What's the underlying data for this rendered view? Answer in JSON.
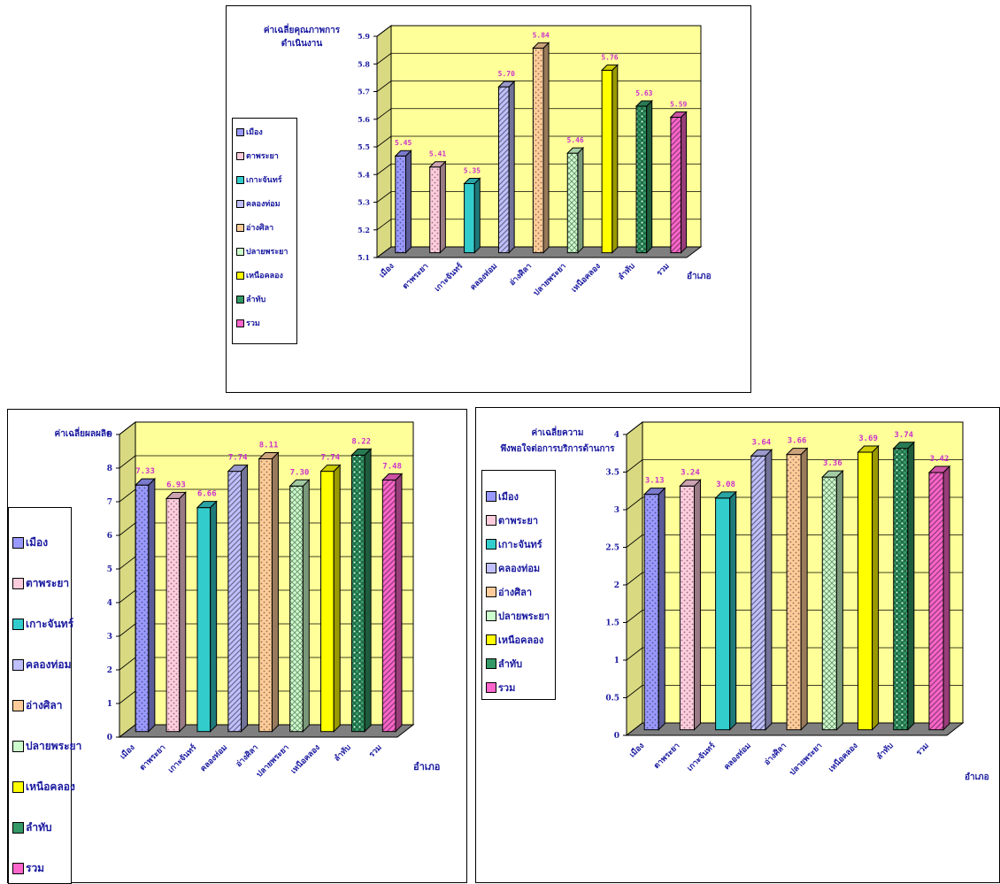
{
  "chart_data": [
    {
      "type": "bar",
      "ytitle_lines": [
        "ค่าเฉลี่ยคุณภาพการ",
        "ดำเนินงาน"
      ],
      "xlabel": "อำเภอ",
      "categories": [
        "เมือง",
        "ตาพระยา",
        "เกาะจันทร์",
        "คลองท่อม",
        "อ่างศิลา",
        "ปลายพระยา",
        "เหนือคลอง",
        "ลำทับ",
        "รวม"
      ],
      "values": [
        5.45,
        5.41,
        5.35,
        5.7,
        5.84,
        5.46,
        5.76,
        5.63,
        5.59
      ],
      "value_labels": [
        "5.45",
        "5.41",
        "5.35",
        "5.70",
        "5.84",
        "5.46",
        "5.76",
        "5.63",
        "5.59"
      ],
      "ylim": [
        5.1,
        5.9
      ],
      "yticks": [
        "5.1",
        "5.2",
        "5.3",
        "5.4",
        "5.5",
        "5.6",
        "5.7",
        "5.8",
        "5.9"
      ],
      "grid": true,
      "legend_position": "left",
      "legend": [
        "เมือง",
        "ตาพระยา",
        "เกาะจันทร์",
        "คลองท่อม",
        "อ่างศิลา",
        "ปลายพระยา",
        "เหนือคลอง",
        "ลำทับ",
        "รวม"
      ]
    },
    {
      "type": "bar",
      "ytitle_lines": [
        "ค่าเฉลี่ยผลผลิต"
      ],
      "xlabel": "อำเภอ",
      "categories": [
        "เมือง",
        "ตาพระยา",
        "เกาะจันทร์",
        "คลองท่อม",
        "อ่างศิลา",
        "ปลายพระยา",
        "เหนือคลอง",
        "ลำทับ",
        "รวม"
      ],
      "values": [
        7.33,
        6.93,
        6.66,
        7.74,
        8.11,
        7.3,
        7.74,
        8.22,
        7.48
      ],
      "value_labels": [
        "7.33",
        "6.93",
        "6.66",
        "7.74",
        "8.11",
        "7.30",
        "7.74",
        "8.22",
        "7.48"
      ],
      "ylim": [
        0,
        9
      ],
      "yticks": [
        "0",
        "1",
        "2",
        "3",
        "4",
        "5",
        "6",
        "7",
        "8",
        "9"
      ],
      "grid": true,
      "legend_position": "left",
      "legend": [
        "เมือง",
        "ตาพระยา",
        "เกาะจันทร์",
        "คลองท่อม",
        "อ่างศิลา",
        "ปลายพระยา",
        "เหนือคลอง",
        "ลำทับ",
        "รวม"
      ]
    },
    {
      "type": "bar",
      "ytitle_lines": [
        "ค่าเฉลี่ยความ",
        "พึงพอใจต่อการบริการด้านการ"
      ],
      "xlabel": "อำเภอ",
      "categories": [
        "เมือง",
        "ตาพระยา",
        "เกาะจันทร์",
        "คลองท่อม",
        "อ่างศิลา",
        "ปลายพระยา",
        "เหนือคลอง",
        "ลำทับ",
        "รวม"
      ],
      "values": [
        3.13,
        3.24,
        3.08,
        3.64,
        3.66,
        3.36,
        3.69,
        3.74,
        3.42
      ],
      "value_labels": [
        "3.13",
        "3.24",
        "3.08",
        "3.64",
        "3.66",
        "3.36",
        "3.69",
        "3.74",
        "3.42"
      ],
      "ylim": [
        0,
        4
      ],
      "yticks": [
        "0",
        "0.5",
        "1",
        "1.5",
        "2",
        "2.5",
        "3",
        "3.5",
        "4"
      ],
      "grid": true,
      "legend_position": "left",
      "legend": [
        "เมือง",
        "ตาพระยา",
        "เกาะจันทร์",
        "คลองท่อม",
        "อ่างศิลา",
        "ปลายพระยา",
        "เหนือคลอง",
        "ลำทับ",
        "รวม"
      ]
    }
  ],
  "colors": {
    "wall": "#ffff99",
    "floor": "#7f7f7f",
    "value_label": "#cc33cc",
    "axis_text": "#1a1aa0",
    "bars": [
      "#9999ff",
      "#ffccdd",
      "#33cccc",
      "#c0c0ff",
      "#ffcc99",
      "#ccffcc",
      "#ffff00",
      "#339966",
      "#ff66cc"
    ]
  }
}
